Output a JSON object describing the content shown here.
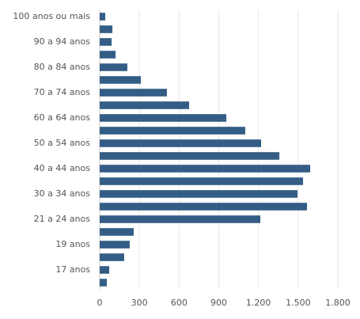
{
  "chart_data": {
    "type": "hbar",
    "categories": [
      "100 anos ou mais",
      null,
      "90 a 94 anos",
      null,
      "80 a 84 anos",
      null,
      "70 a 74 anos",
      null,
      "60 a 64 anos",
      null,
      "50 a 54 anos",
      null,
      "40 a 44 anos",
      null,
      "30 a 34 anos",
      null,
      "21 a 24 anos",
      null,
      "19 anos",
      null,
      "17 anos",
      null
    ],
    "values": [
      42,
      96,
      90,
      120,
      209,
      311,
      508,
      676,
      957,
      1100,
      1220,
      1358,
      1591,
      1537,
      1495,
      1567,
      1214,
      257,
      227,
      185,
      72,
      54
    ],
    "color": "#345d85",
    "xlim": [
      0,
      1800
    ],
    "xticks": [
      0,
      300,
      600,
      900,
      {
        "value": 1200,
        "label": "1.200"
      },
      {
        "value": 1500,
        "label": "1.500"
      },
      {
        "value": 1800,
        "label": "1.800"
      }
    ],
    "grid": true
  }
}
